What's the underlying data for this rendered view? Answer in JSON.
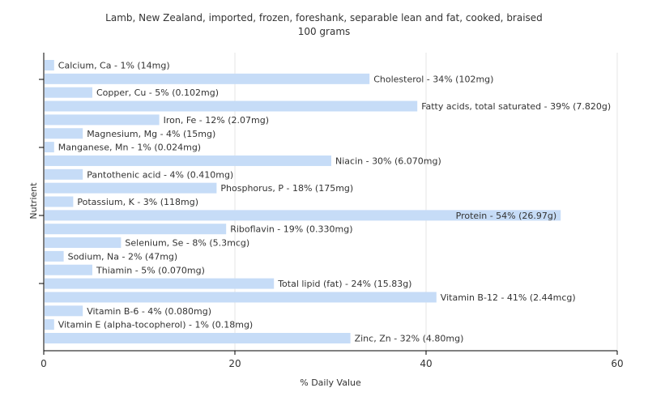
{
  "chart_data": {
    "type": "bar",
    "orientation": "horizontal",
    "title": "Lamb, New Zealand, imported, frozen, foreshank, separable lean and fat, cooked, braised",
    "subtitle": "100 grams",
    "xlabel": "% Daily Value",
    "ylabel": "Nutrient",
    "xlim": [
      0,
      60
    ],
    "xticks": [
      0,
      20,
      40,
      60
    ],
    "grid": true,
    "bar_color": "#c6dcf7",
    "categories": [
      "Calcium, Ca",
      "Cholesterol",
      "Copper, Cu",
      "Fatty acids, total saturated",
      "Iron, Fe",
      "Magnesium, Mg",
      "Manganese, Mn",
      "Niacin",
      "Pantothenic acid",
      "Phosphorus, P",
      "Potassium, K",
      "Protein",
      "Riboflavin",
      "Selenium, Se",
      "Sodium, Na",
      "Thiamin",
      "Total lipid (fat)",
      "Vitamin B-12",
      "Vitamin B-6",
      "Vitamin E (alpha-tocopherol)",
      "Zinc, Zn"
    ],
    "values": [
      1,
      34,
      5,
      39,
      12,
      4,
      1,
      30,
      4,
      18,
      3,
      54,
      19,
      8,
      2,
      5,
      24,
      41,
      4,
      1,
      32
    ],
    "labels": [
      "Calcium, Ca - 1% (14mg)",
      "Cholesterol - 34% (102mg)",
      "Copper, Cu - 5% (0.102mg)",
      "Fatty acids, total saturated - 39% (7.820g)",
      "Iron, Fe - 12% (2.07mg)",
      "Magnesium, Mg - 4% (15mg)",
      "Manganese, Mn - 1% (0.024mg)",
      "Niacin - 30% (6.070mg)",
      "Pantothenic acid - 4% (0.410mg)",
      "Phosphorus, P - 18% (175mg)",
      "Potassium, K - 3% (118mg)",
      "Protein - 54% (26.97g)",
      "Riboflavin - 19% (0.330mg)",
      "Selenium, Se - 8% (5.3mcg)",
      "Sodium, Na - 2% (47mg)",
      "Thiamin - 5% (0.070mg)",
      "Total lipid (fat) - 24% (15.83g)",
      "Vitamin B-12 - 41% (2.44mcg)",
      "Vitamin B-6 - 4% (0.080mg)",
      "Vitamin E (alpha-tocopherol) - 1% (0.18mg)",
      "Zinc, Zn - 32% (4.80mg)"
    ]
  }
}
